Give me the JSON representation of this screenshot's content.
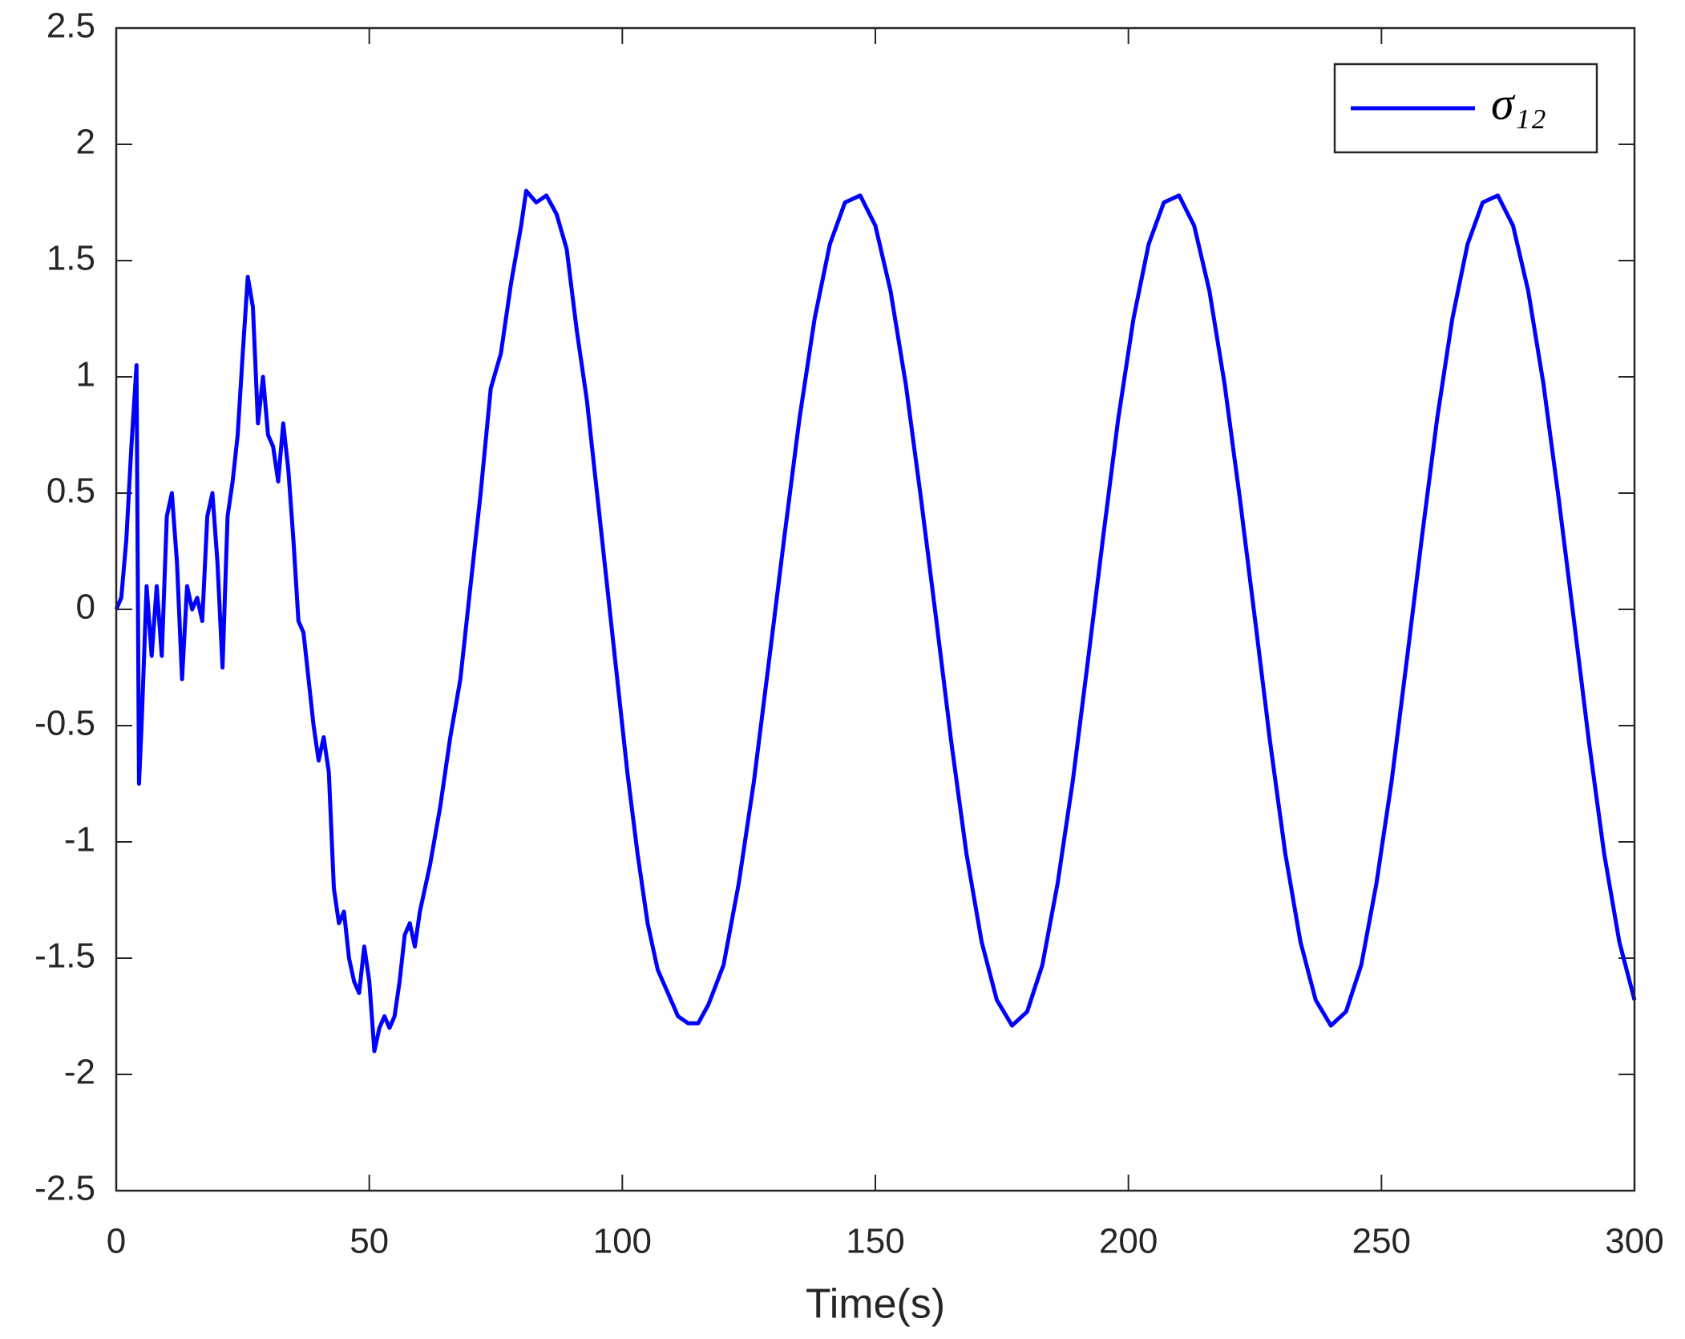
{
  "chart_data": {
    "type": "line",
    "xlabel": "Time(s)",
    "xlim": [
      0,
      300
    ],
    "xticks": [
      0,
      50,
      100,
      150,
      200,
      250,
      300
    ],
    "ylim": [
      -2.5,
      2.5
    ],
    "yticks": [
      -2.5,
      -2,
      -1.5,
      -1,
      -0.5,
      0,
      0.5,
      1,
      1.5,
      2,
      2.5
    ],
    "legend": "upper right",
    "x": [
      0,
      1,
      2,
      3,
      4,
      4.5,
      5,
      6,
      7,
      8,
      9,
      10,
      11,
      12,
      13,
      14,
      15,
      16,
      17,
      18,
      19,
      20,
      21,
      22,
      23,
      24,
      25,
      26,
      27,
      28,
      29,
      30,
      31,
      32,
      33,
      34,
      35,
      36,
      37,
      38,
      39,
      40,
      41,
      42,
      43,
      44,
      45,
      46,
      47,
      48,
      49,
      50,
      51,
      52,
      53,
      54,
      55,
      56,
      57,
      58,
      59,
      60,
      62,
      64,
      66,
      68,
      70,
      72,
      74,
      76,
      78,
      80,
      81,
      83,
      85,
      87,
      89,
      91,
      93,
      95,
      97,
      99,
      101,
      103,
      105,
      107,
      109,
      111,
      113,
      115,
      117,
      120,
      123,
      126,
      129,
      132,
      135,
      138,
      141,
      144,
      147,
      150,
      153,
      156,
      159,
      162,
      165,
      168,
      171,
      174,
      177,
      180,
      183,
      186,
      189,
      192,
      195,
      198,
      201,
      204,
      207,
      210,
      213,
      216,
      219,
      222,
      225,
      228,
      231,
      234,
      237,
      240,
      243,
      246,
      249,
      252,
      255,
      258,
      261,
      264,
      267,
      270,
      273,
      276,
      279,
      282,
      285,
      288,
      291,
      294,
      297,
      300
    ],
    "series": [
      {
        "name": "σ₁₂",
        "color": "#0000ff",
        "values": [
          0,
          0.05,
          0.3,
          0.7,
          1.05,
          -0.75,
          -0.5,
          0.1,
          -0.2,
          0.1,
          -0.2,
          0.4,
          0.5,
          0.2,
          -0.3,
          0.1,
          0.0,
          0.05,
          -0.05,
          0.4,
          0.5,
          0.2,
          -0.25,
          0.4,
          0.55,
          0.75,
          1.1,
          1.43,
          1.3,
          0.8,
          1.0,
          0.75,
          0.7,
          0.55,
          0.8,
          0.6,
          0.3,
          -0.05,
          -0.1,
          -0.3,
          -0.5,
          -0.65,
          -0.55,
          -0.7,
          -1.2,
          -1.35,
          -1.3,
          -1.5,
          -1.6,
          -1.65,
          -1.45,
          -1.6,
          -1.9,
          -1.8,
          -1.75,
          -1.8,
          -1.75,
          -1.6,
          -1.4,
          -1.35,
          -1.45,
          -1.3,
          -1.1,
          -0.85,
          -0.55,
          -0.3,
          0.1,
          0.5,
          0.95,
          1.1,
          1.4,
          1.65,
          1.8,
          1.75,
          1.78,
          1.7,
          1.55,
          1.2,
          0.9,
          0.5,
          0.1,
          -0.3,
          -0.7,
          -1.05,
          -1.35,
          -1.55,
          -1.65,
          -1.75,
          -1.78,
          -1.78,
          -1.7,
          -1.53,
          -1.18,
          -0.74,
          -0.22,
          0.31,
          0.82,
          1.25,
          1.57,
          1.75,
          1.78,
          1.65,
          1.37,
          0.97,
          0.48,
          -0.04,
          -0.57,
          -1.05,
          -1.43,
          -1.68,
          -1.79,
          -1.73,
          -1.53,
          -1.18,
          -0.74,
          -0.22,
          0.31,
          0.82,
          1.25,
          1.57,
          1.75,
          1.78,
          1.65,
          1.37,
          0.97,
          0.48,
          -0.04,
          -0.57,
          -1.05,
          -1.43,
          -1.68,
          -1.79,
          -1.73,
          -1.53,
          -1.18,
          -0.74,
          -0.22,
          0.31,
          0.82,
          1.25,
          1.57,
          1.75,
          1.78,
          1.65,
          1.37,
          0.97,
          0.48,
          -0.04,
          -0.57,
          -1.05,
          -1.43,
          -1.68
        ]
      }
    ]
  }
}
